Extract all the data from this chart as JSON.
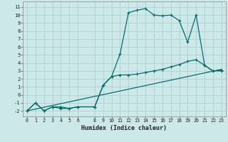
{
  "xlabel": "Humidex (Indice chaleur)",
  "bg_color": "#cce8e8",
  "line_color": "#006666",
  "grid_color": "#aacccc",
  "xlim": [
    -0.5,
    23.5
  ],
  "ylim": [
    -2.7,
    11.7
  ],
  "xticks": [
    0,
    1,
    2,
    3,
    4,
    5,
    6,
    8,
    9,
    10,
    11,
    12,
    13,
    14,
    15,
    16,
    17,
    18,
    19,
    20,
    21,
    22,
    23
  ],
  "yticks": [
    -2,
    -1,
    0,
    1,
    2,
    3,
    4,
    5,
    6,
    7,
    8,
    9,
    10,
    11
  ],
  "line1_x": [
    0,
    1,
    2,
    3,
    4,
    5,
    6,
    8,
    9,
    10,
    11,
    12,
    13,
    14,
    15,
    16,
    17,
    18,
    19,
    20,
    21,
    22,
    23
  ],
  "line1_y": [
    -2.0,
    -1.0,
    -2.0,
    -1.5,
    -1.5,
    -1.7,
    -1.5,
    -1.5,
    1.2,
    2.3,
    5.1,
    10.3,
    10.6,
    10.8,
    10.0,
    9.9,
    10.0,
    9.3,
    6.6,
    10.0,
    3.7,
    3.0,
    3.0
  ],
  "line2_x": [
    0,
    1,
    2,
    3,
    4,
    5,
    6,
    8,
    9,
    10,
    11,
    12,
    13,
    14,
    15,
    16,
    17,
    18,
    19,
    20,
    21,
    22,
    23
  ],
  "line2_y": [
    -2.0,
    -1.0,
    -2.0,
    -1.5,
    -1.7,
    -1.7,
    -1.5,
    -1.5,
    1.2,
    2.3,
    2.5,
    2.5,
    2.6,
    2.8,
    3.0,
    3.2,
    3.5,
    3.8,
    4.2,
    4.4,
    3.7,
    3.0,
    3.1
  ],
  "line3_x": [
    0,
    23
  ],
  "line3_y": [
    -2.0,
    3.2
  ]
}
